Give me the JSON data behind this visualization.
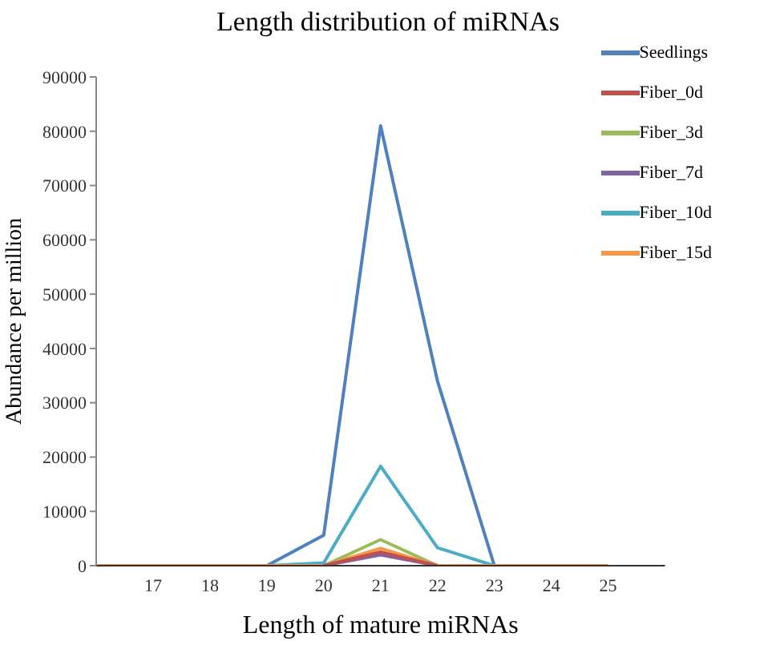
{
  "chart_data": {
    "type": "line",
    "title": "Length distribution of miRNAs",
    "xlabel": "Length of mature miRNAs",
    "ylabel": "Abundance per million",
    "categories": [
      null,
      "17",
      "18",
      "19",
      "20",
      "21",
      "22",
      "23",
      "24",
      "25",
      null
    ],
    "series": [
      {
        "name": "Seedlings",
        "color": "#4f81bd",
        "values": [
          null,
          null,
          null,
          0,
          5600,
          81000,
          34000,
          0,
          null,
          null,
          null
        ]
      },
      {
        "name": "Fiber_0d",
        "color": "#c0504d",
        "values": [
          null,
          null,
          null,
          null,
          0,
          2500,
          0,
          null,
          null,
          null,
          null
        ]
      },
      {
        "name": "Fiber_3d",
        "color": "#9bbb59",
        "values": [
          null,
          null,
          null,
          null,
          0,
          4800,
          0,
          null,
          null,
          null,
          null
        ]
      },
      {
        "name": "Fiber_7d",
        "color": "#8064a2",
        "values": [
          null,
          null,
          null,
          null,
          0,
          2000,
          0,
          null,
          null,
          null,
          null
        ]
      },
      {
        "name": "Fiber_10d",
        "color": "#4bacc6",
        "values": [
          null,
          null,
          null,
          0,
          500,
          18300,
          3300,
          0,
          null,
          null,
          null
        ]
      },
      {
        "name": "Fiber_15d",
        "color": "#f79646",
        "values": [
          0,
          0,
          0,
          0,
          0,
          3200,
          0,
          0,
          0,
          0,
          null
        ]
      }
    ],
    "ylim": [
      0,
      90000
    ],
    "yticks": [
      0,
      10000,
      20000,
      30000,
      40000,
      50000,
      60000,
      70000,
      80000,
      90000
    ],
    "grid": false,
    "legend": "top right",
    "marker": "none",
    "line_style": "solid"
  }
}
